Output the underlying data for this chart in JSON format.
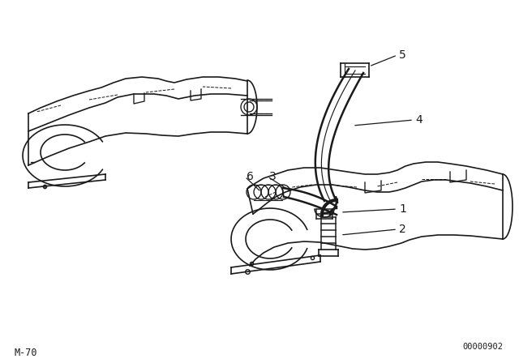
{
  "bg_color": "#ffffff",
  "line_color": "#1a1a1a",
  "fig_width": 6.4,
  "fig_height": 4.48,
  "dpi": 100,
  "bottom_left_label": "M-70",
  "bottom_right_label": "00000902",
  "label_5": "5",
  "label_4": "4",
  "label_3": "3",
  "label_6": "6",
  "label_1": "1",
  "label_2": "2"
}
